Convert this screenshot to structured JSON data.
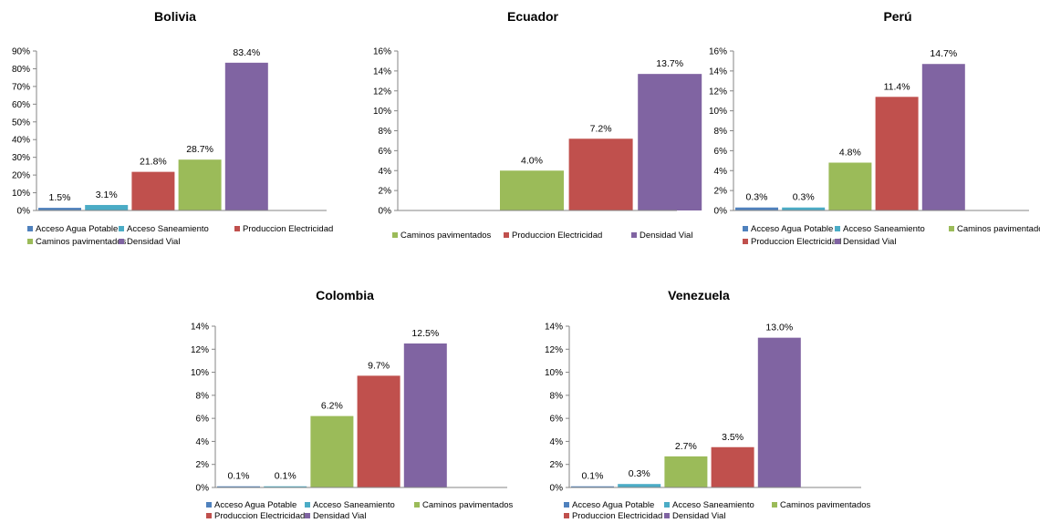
{
  "series_colors": {
    "Acceso Agua Potable": "#4f81bd",
    "Acceso Saneamiento": "#4bacc6",
    "Produccion Electricidad": "#c0504d",
    "Caminos pavimentados": "#9bbb59",
    "Densidad Vial": "#8064a2"
  },
  "chart_data": [
    {
      "type": "bar",
      "title": "Bolivia",
      "categories": [
        "Acceso Agua Potable",
        "Acceso Saneamiento",
        "Produccion Electricidad",
        "Caminos pavimentados",
        "Densidad Vial"
      ],
      "values": [
        1.5,
        3.1,
        21.8,
        28.7,
        83.4
      ],
      "labels": [
        "1.5%",
        "3.1%",
        "21.8%",
        "28.7%",
        "83.4%"
      ],
      "ylim": [
        0,
        90
      ],
      "yticks": [
        "0%",
        "10%",
        "20%",
        "30%",
        "40%",
        "50%",
        "60%",
        "70%",
        "80%",
        "90%"
      ],
      "legend": [
        "Acceso Agua Potable",
        "Acceso Saneamiento",
        "Produccion Electricidad",
        "Caminos pavimentados",
        "Densidad Vial"
      ],
      "legend_position": "bottom"
    },
    {
      "type": "bar",
      "title": "Ecuador",
      "categories": [
        "Caminos pavimentados",
        "Produccion Electricidad",
        "Densidad Vial"
      ],
      "values": [
        4.0,
        7.2,
        13.7
      ],
      "labels": [
        "4.0%",
        "7.2%",
        "13.7%"
      ],
      "ylim": [
        0,
        16
      ],
      "yticks": [
        "0%",
        "2%",
        "4%",
        "6%",
        "8%",
        "10%",
        "12%",
        "14%",
        "16%"
      ],
      "legend": [
        "Caminos pavimentados",
        "Produccion Electricidad",
        "Densidad Vial"
      ],
      "legend_position": "bottom"
    },
    {
      "type": "bar",
      "title": "Perú",
      "categories": [
        "Acceso Agua Potable",
        "Acceso Saneamiento",
        "Caminos pavimentados",
        "Produccion Electricidad",
        "Densidad Vial"
      ],
      "values": [
        0.3,
        0.3,
        4.8,
        11.4,
        14.7
      ],
      "labels": [
        "0.3%",
        "0.3%",
        "4.8%",
        "11.4%",
        "14.7%"
      ],
      "ylim": [
        0,
        16
      ],
      "yticks": [
        "0%",
        "2%",
        "4%",
        "6%",
        "8%",
        "10%",
        "12%",
        "14%",
        "16%"
      ],
      "legend": [
        "Acceso Agua Potable",
        "Acceso Saneamiento",
        "Caminos pavimentados",
        "Produccion Electricidad",
        "Densidad Vial"
      ],
      "legend_position": "bottom"
    },
    {
      "type": "bar",
      "title": "Colombia",
      "categories": [
        "Acceso Agua Potable",
        "Acceso Saneamiento",
        "Caminos pavimentados",
        "Produccion Electricidad",
        "Densidad Vial"
      ],
      "values": [
        0.1,
        0.1,
        6.2,
        9.7,
        12.5
      ],
      "labels": [
        "0.1%",
        "0.1%",
        "6.2%",
        "9.7%",
        "12.5%"
      ],
      "ylim": [
        0,
        14
      ],
      "yticks": [
        "0%",
        "2%",
        "4%",
        "6%",
        "8%",
        "10%",
        "12%",
        "14%"
      ],
      "legend": [
        "Acceso Agua Potable",
        "Acceso Saneamiento",
        "Caminos pavimentados",
        "Produccion Electricidad",
        "Densidad Vial"
      ],
      "legend_position": "bottom"
    },
    {
      "type": "bar",
      "title": "Venezuela",
      "categories": [
        "Acceso Agua Potable",
        "Acceso Saneamiento",
        "Caminos pavimentados",
        "Produccion Electricidad",
        "Densidad Vial"
      ],
      "values": [
        0.1,
        0.3,
        2.7,
        3.5,
        13.0
      ],
      "labels": [
        "0.1%",
        "0.3%",
        "2.7%",
        "3.5%",
        "13.0%"
      ],
      "ylim": [
        0,
        14
      ],
      "yticks": [
        "0%",
        "2%",
        "4%",
        "6%",
        "8%",
        "10%",
        "12%",
        "14%"
      ],
      "legend": [
        "Acceso Agua Potable",
        "Acceso Saneamiento",
        "Caminos pavimentados",
        "Produccion Electricidad",
        "Densidad Vial"
      ],
      "legend_position": "bottom"
    }
  ]
}
